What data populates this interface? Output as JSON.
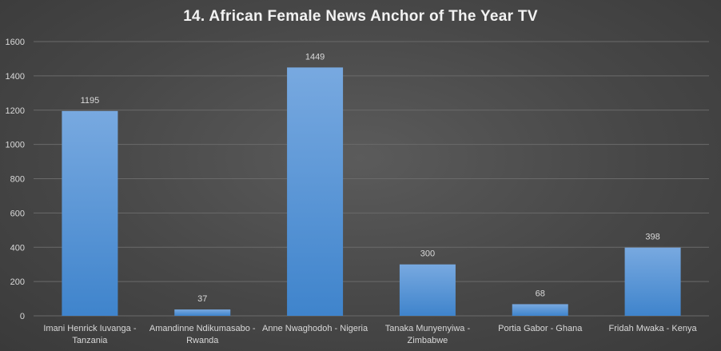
{
  "chart_data": {
    "type": "bar",
    "title": "14. African Female News Anchor of The Year TV",
    "categories": [
      [
        "Imani Henrick Iuvanga -",
        "Tanzania"
      ],
      [
        "Amandinne Ndikumasabo -",
        "Rwanda"
      ],
      [
        "Anne Nwaghodoh - Nigeria"
      ],
      [
        "Tanaka Munyenyiwa -",
        "Zimbabwe"
      ],
      [
        "Portia Gabor - Ghana"
      ],
      [
        "Fridah Mwaka - Kenya"
      ]
    ],
    "values": [
      1195,
      37,
      1449,
      300,
      68,
      398
    ],
    "ylim": [
      0,
      1600
    ],
    "yticks": [
      0,
      200,
      400,
      600,
      800,
      1000,
      1200,
      1400,
      1600
    ],
    "xlabel": "",
    "ylabel": "",
    "grid": true,
    "legend": "none",
    "colors": {
      "bar_top": "#78a9e0",
      "bar_bottom": "#3f84cc",
      "grid": "#6a6a6a",
      "axis_text": "#d9d9d9"
    }
  }
}
